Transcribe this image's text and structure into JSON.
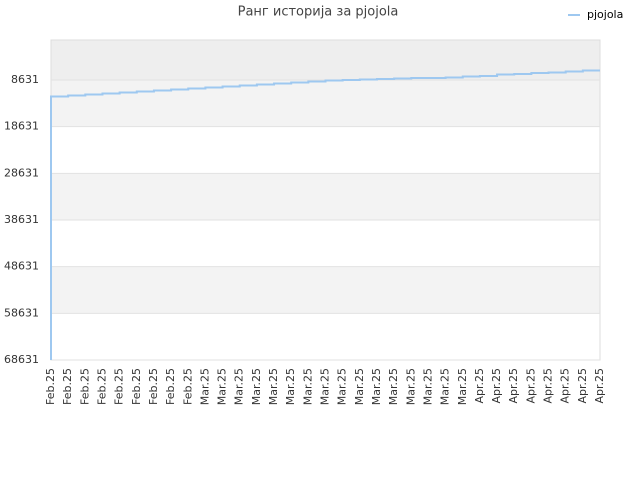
{
  "chart_data": {
    "type": "line",
    "title": "Ранг историја за pjojola",
    "categories": [
      "Feb.25",
      "Feb.25",
      "Feb.25",
      "Feb.25",
      "Feb.25",
      "Feb.25",
      "Feb.25",
      "Feb.25",
      "Feb.25",
      "Mar.25",
      "Mar.25",
      "Mar.25",
      "Mar.25",
      "Mar.25",
      "Mar.25",
      "Mar.25",
      "Mar.25",
      "Mar.25",
      "Mar.25",
      "Mar.25",
      "Mar.25",
      "Mar.25",
      "Mar.25",
      "Mar.25",
      "Mar.25",
      "Apr.25",
      "Apr.25",
      "Apr.25",
      "Apr.25",
      "Apr.25",
      "Apr.25",
      "Apr.25",
      "Apr.25"
    ],
    "series": [
      {
        "name": "pjojola",
        "color": "#9ec8f0",
        "values": [
          68631,
          12160,
          11950,
          11730,
          11520,
          11310,
          11090,
          10880,
          10660,
          10450,
          10240,
          10020,
          9810,
          9590,
          9380,
          9170,
          8950,
          8740,
          8631,
          8520,
          8420,
          8310,
          8200,
          8200,
          8100,
          7880,
          7780,
          7450,
          7350,
          7130,
          7030,
          6810,
          6600
        ]
      }
    ],
    "ylim": [
      68631,
      60
    ],
    "yticks": [
      8631,
      18631,
      28631,
      38631,
      48631,
      58631,
      68631
    ],
    "step": "pre",
    "legend": "top-right",
    "grid": true
  }
}
